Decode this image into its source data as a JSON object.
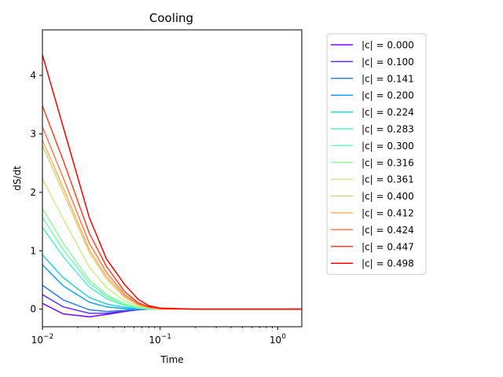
{
  "chart_data": {
    "type": "line",
    "title": "Cooling",
    "xlabel": "Time",
    "ylabel": "dS/dt",
    "xscale": "log",
    "xlim": [
      0.01,
      1.6
    ],
    "ylim": [
      -0.3,
      4.78
    ],
    "xticks": [
      {
        "value": 0.01,
        "base": "10",
        "exp": "−2"
      },
      {
        "value": 0.1,
        "base": "10",
        "exp": "−1"
      },
      {
        "value": 1,
        "base": "10",
        "exp": "0"
      }
    ],
    "yticks": [
      0,
      1,
      2,
      3,
      4
    ],
    "grid": false,
    "legend_position": "outside-right",
    "x": [
      0.01,
      0.015,
      0.025,
      0.035,
      0.05,
      0.065,
      0.08,
      0.1,
      0.2,
      0.5,
      1.0,
      1.6
    ],
    "series": [
      {
        "name": "|c| = 0.000",
        "color": "#7f00ff",
        "values": [
          0.1,
          -0.08,
          -0.13,
          -0.09,
          -0.04,
          -0.01,
          0.0,
          0.0,
          0.0,
          0.0,
          0.0,
          0.0
        ]
      },
      {
        "name": "|c| = 0.100",
        "color": "#5d32fe",
        "values": [
          0.25,
          0.04,
          -0.07,
          -0.07,
          -0.03,
          -0.01,
          0.0,
          0.0,
          0.0,
          0.0,
          0.0,
          0.0
        ]
      },
      {
        "name": "|c| = 0.141",
        "color": "#2c7ef7",
        "values": [
          0.41,
          0.16,
          -0.01,
          -0.04,
          -0.02,
          0.0,
          0.0,
          0.0,
          0.0,
          0.0,
          0.0,
          0.0
        ]
      },
      {
        "name": "|c| = 0.200",
        "color": "#12a4ec",
        "values": [
          0.76,
          0.4,
          0.12,
          0.04,
          0.01,
          0.0,
          0.0,
          0.0,
          0.0,
          0.0,
          0.0,
          0.0
        ]
      },
      {
        "name": "|c| = 0.224",
        "color": "#22d1dd",
        "values": [
          0.93,
          0.54,
          0.2,
          0.09,
          0.03,
          0.01,
          0.0,
          0.0,
          0.0,
          0.0,
          0.0,
          0.0
        ]
      },
      {
        "name": "|c| = 0.283",
        "color": "#4cf2ce",
        "values": [
          1.4,
          0.9,
          0.38,
          0.18,
          0.06,
          0.02,
          0.0,
          0.0,
          0.0,
          0.0,
          0.0,
          0.0
        ]
      },
      {
        "name": "|c| = 0.300",
        "color": "#6ffdb4",
        "values": [
          1.57,
          1.02,
          0.45,
          0.22,
          0.08,
          0.03,
          0.01,
          0.0,
          0.0,
          0.0,
          0.0,
          0.0
        ]
      },
      {
        "name": "|c| = 0.316",
        "color": "#8efe9a",
        "values": [
          1.72,
          1.13,
          0.5,
          0.25,
          0.09,
          0.03,
          0.01,
          0.0,
          0.0,
          0.0,
          0.0,
          0.0
        ]
      },
      {
        "name": "|c| = 0.361",
        "color": "#c4f088",
        "values": [
          2.23,
          1.55,
          0.72,
          0.37,
          0.14,
          0.05,
          0.02,
          0.0,
          0.0,
          0.0,
          0.0,
          0.0
        ]
      },
      {
        "name": "|c| = 0.400",
        "color": "#d9d57c",
        "values": [
          2.8,
          2.0,
          0.97,
          0.52,
          0.2,
          0.07,
          0.02,
          0.0,
          0.0,
          0.0,
          0.0,
          0.0
        ]
      },
      {
        "name": "|c| = 0.412",
        "color": "#ffb060",
        "values": [
          2.89,
          2.08,
          1.02,
          0.56,
          0.22,
          0.08,
          0.03,
          0.0,
          0.0,
          0.0,
          0.0,
          0.0
        ]
      },
      {
        "name": "|c| = 0.424",
        "color": "#ff7a4a",
        "values": [
          3.12,
          2.25,
          1.13,
          0.63,
          0.25,
          0.09,
          0.03,
          0.01,
          0.0,
          0.0,
          0.0,
          0.0
        ]
      },
      {
        "name": "|c| = 0.447",
        "color": "#ff4222",
        "values": [
          3.48,
          2.55,
          1.3,
          0.73,
          0.3,
          0.11,
          0.04,
          0.01,
          0.0,
          0.0,
          0.0,
          0.0
        ]
      },
      {
        "name": "|c| = 0.498",
        "color": "#ff0000",
        "values": [
          4.35,
          3.12,
          1.57,
          0.86,
          0.42,
          0.17,
          0.06,
          0.02,
          0.0,
          0.0,
          0.0,
          0.0
        ]
      }
    ]
  }
}
